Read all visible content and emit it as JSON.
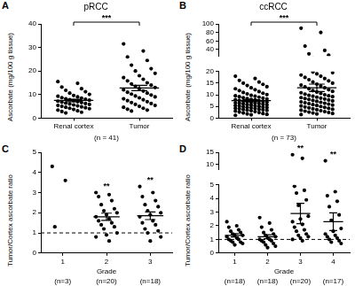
{
  "chart_data": [
    {
      "type": "scatter",
      "panel": "A",
      "title": "pRCC",
      "y_label": "Ascorbate (mg/100 g tissue)",
      "categories": [
        "Renal cortex",
        "Tumor"
      ],
      "values": [
        [
          15.5,
          14.8,
          13.2,
          12.5,
          11.8,
          11.2,
          10.6,
          10.1,
          9.6,
          9.3,
          9.0,
          8.7,
          8.5,
          8.2,
          8.0,
          7.8,
          7.6,
          7.4,
          7.2,
          7.0,
          6.8,
          6.6,
          6.4,
          6.2,
          6.0,
          5.8,
          5.6,
          5.4,
          5.2,
          5.0,
          4.8,
          4.6,
          4.4,
          4.2,
          4.0,
          3.7,
          3.4,
          3.1,
          2.8,
          2.5,
          2.2
        ],
        [
          31.5,
          28.5,
          26.0,
          24.5,
          22.5,
          21.0,
          20.0,
          19.0,
          18.0,
          17.2,
          16.5,
          15.8,
          15.0,
          14.5,
          14.0,
          13.5,
          13.0,
          12.5,
          12.0,
          11.5,
          11.0,
          10.6,
          10.2,
          9.8,
          9.4,
          9.0,
          8.6,
          8.2,
          7.8,
          7.4,
          7.0,
          6.6,
          6.2,
          5.8,
          5.4,
          5.0,
          4.6,
          4.2,
          3.8,
          3.4,
          3.0
        ]
      ],
      "means": [
        7.5,
        12.8
      ],
      "sem": [
        0.5,
        1.1
      ],
      "color": "#000000",
      "grid": false,
      "ylim": [
        0,
        40
      ],
      "yticks": [
        0,
        10,
        20,
        30,
        40
      ],
      "note": "(n = 41)",
      "annotations": [
        {
          "text": "***",
          "from": "Renal cortex",
          "to": "Tumor"
        }
      ]
    },
    {
      "type": "scatter",
      "panel": "B",
      "title": "ccRCC",
      "y_label": "Ascorbate (mg/100 g tissue)",
      "categories": [
        "Renal cortex",
        "Tumor"
      ],
      "values": [
        [
          18.0,
          17.0,
          16.2,
          15.5,
          15.0,
          14.5,
          14.0,
          13.5,
          13.0,
          12.6,
          12.2,
          11.8,
          11.4,
          11.0,
          10.7,
          10.4,
          10.1,
          9.8,
          9.6,
          9.4,
          9.2,
          9.0,
          8.8,
          8.6,
          8.4,
          8.2,
          8.0,
          7.9,
          7.8,
          7.6,
          7.4,
          7.3,
          7.2,
          7.0,
          6.9,
          6.8,
          6.6,
          6.5,
          6.4,
          6.2,
          6.1,
          6.0,
          5.8,
          5.7,
          5.6,
          5.4,
          5.3,
          5.2,
          5.0,
          4.9,
          4.8,
          4.6,
          4.5,
          4.4,
          4.2,
          4.1,
          4.0,
          3.8,
          3.7,
          3.6,
          3.4,
          3.3,
          3.2,
          3.0,
          2.8,
          2.6,
          2.4,
          2.2,
          2.0,
          1.8,
          1.6,
          1.4,
          1.2
        ],
        [
          90.0,
          80.0,
          48.0,
          38.0,
          30.0,
          27.0,
          19.8,
          19.5,
          19.0,
          18.5,
          18.0,
          17.5,
          17.0,
          16.5,
          16.0,
          15.5,
          15.0,
          14.6,
          14.2,
          13.8,
          13.4,
          13.0,
          12.6,
          12.2,
          11.8,
          11.5,
          11.2,
          10.9,
          10.6,
          10.3,
          10.0,
          9.8,
          9.6,
          9.4,
          9.2,
          9.0,
          8.8,
          8.6,
          8.4,
          8.2,
          8.0,
          7.8,
          7.6,
          7.4,
          7.2,
          7.0,
          6.8,
          6.6,
          6.4,
          6.2,
          6.0,
          5.8,
          5.6,
          5.4,
          5.2,
          5.0,
          4.8,
          4.6,
          4.4,
          4.2,
          4.0,
          3.8,
          3.6,
          3.4,
          3.2,
          3.0,
          2.8,
          2.6,
          2.4,
          2.2,
          2.0,
          1.8,
          1.5
        ]
      ],
      "means": [
        7.5,
        13.0
      ],
      "sem": [
        0.4,
        1.6
      ],
      "color": "#000000",
      "grid": false,
      "ylim": [
        0,
        20
      ],
      "yticks": [
        0,
        5,
        10,
        15,
        20
      ],
      "upper_ylim": [
        25,
        100
      ],
      "upper_yticks": [
        40,
        60,
        80,
        100
      ],
      "note": "(n = 73)",
      "annotations": [
        {
          "text": "***",
          "from": "Renal cortex",
          "to": "Tumor"
        }
      ]
    },
    {
      "type": "scatter",
      "panel": "C",
      "y_label": "Tumor/Cortex ascorbate ratio",
      "x_label": "Grade",
      "categories": [
        "1",
        "2",
        "3"
      ],
      "values": [
        [
          4.3,
          3.6,
          1.3
        ],
        [
          3.0,
          2.9,
          2.8,
          2.6,
          2.4,
          2.2,
          2.1,
          2.0,
          1.9,
          1.8,
          1.7,
          1.6,
          1.5,
          1.4,
          1.3,
          1.2,
          1.0,
          0.9,
          0.8,
          0.6
        ],
        [
          3.3,
          3.0,
          2.8,
          2.6,
          2.4,
          2.3,
          2.1,
          2.0,
          1.9,
          1.8,
          1.6,
          1.5,
          1.4,
          1.2,
          1.1,
          1.0,
          0.8,
          0.6
        ]
      ],
      "means": [
        null,
        1.8,
        1.85
      ],
      "sem": [
        null,
        0.18,
        0.19
      ],
      "color": "#000000",
      "grid": false,
      "ylim": [
        0,
        5
      ],
      "yticks": [
        0,
        1,
        2,
        3,
        4,
        5
      ],
      "reference_line": {
        "value": 1,
        "line_style": "dashed"
      },
      "category_notes": [
        "(n=3)",
        "(n=20)",
        "(n=18)"
      ],
      "annotations": [
        {
          "text": "**",
          "category": "2"
        },
        {
          "text": "**",
          "category": "3"
        }
      ]
    },
    {
      "type": "scatter",
      "panel": "D",
      "y_label": "Tumor/Cortex ascorbate ratio",
      "x_label": "Grade",
      "categories": [
        "1",
        "2",
        "3",
        "4"
      ],
      "values": [
        [
          2.3,
          2.0,
          1.9,
          1.7,
          1.6,
          1.5,
          1.4,
          1.3,
          1.3,
          1.2,
          1.1,
          1.0,
          1.0,
          0.9,
          0.8,
          0.8,
          0.7,
          0.6
        ],
        [
          2.6,
          2.2,
          1.9,
          1.7,
          1.5,
          1.4,
          1.3,
          1.2,
          1.1,
          1.0,
          1.0,
          0.9,
          0.9,
          0.8,
          0.7,
          0.6,
          0.5,
          0.4
        ],
        [
          14.0,
          12.5,
          4.9,
          4.6,
          4.4,
          3.9,
          3.5,
          2.7,
          2.5,
          2.3,
          2.1,
          1.9,
          1.7,
          1.6,
          1.4,
          1.3,
          1.2,
          1.1,
          1.0,
          0.9
        ],
        [
          11.5,
          4.5,
          4.2,
          3.8,
          3.4,
          2.8,
          2.4,
          1.8,
          1.6,
          1.4,
          1.3,
          1.2,
          1.1,
          1.0,
          0.9,
          0.8,
          0.7
        ]
      ],
      "means": [
        1.3,
        1.2,
        2.9,
        2.3
      ],
      "sem": [
        0.12,
        0.14,
        0.75,
        0.65
      ],
      "color": "#000000",
      "grid": false,
      "ylim": [
        0,
        5
      ],
      "yticks": [
        0,
        1,
        2,
        3,
        4,
        5
      ],
      "upper_ylim": [
        8,
        15
      ],
      "upper_yticks": [
        10,
        15
      ],
      "reference_line": {
        "value": 1,
        "line_style": "dashed"
      },
      "category_notes": [
        "(n=18)",
        "(n=18)",
        "(n=20)",
        "(n=17)"
      ],
      "annotations": [
        {
          "text": "**",
          "category": "3"
        },
        {
          "text": "**",
          "category": "4"
        }
      ]
    }
  ]
}
